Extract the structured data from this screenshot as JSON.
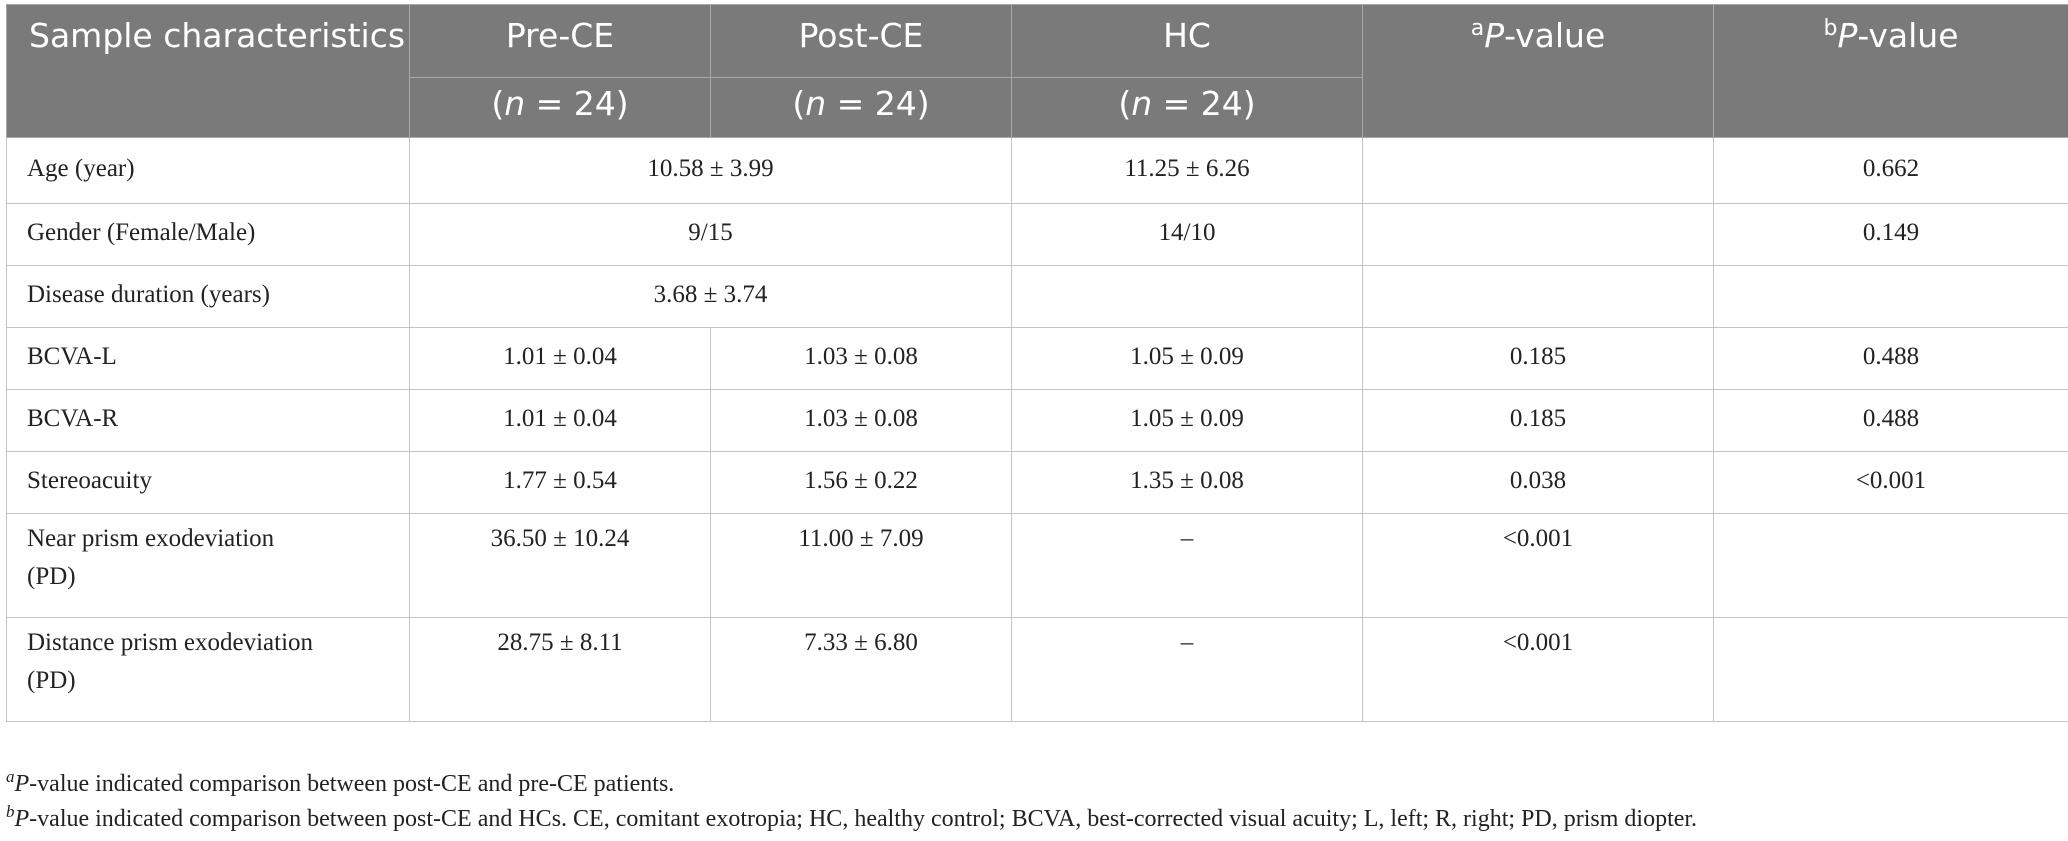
{
  "header": {
    "sample": "Sample characteristics",
    "pre": "Pre-CE",
    "post": "Post-CE",
    "hc": "HC",
    "n_open": "(",
    "n_var": "n",
    "n_val": " = 24)",
    "pa_sup": "a",
    "pb_sup": "b",
    "p_var": "P",
    "p_rest": "-value"
  },
  "rows": {
    "age": {
      "label": "Age (year)",
      "pre_post": "10.58 ± 3.99",
      "hc": "11.25 ± 6.26",
      "pa": "",
      "pb": "0.662"
    },
    "gender": {
      "label": "Gender (Female/Male)",
      "pre_post": "9/15",
      "hc": "14/10",
      "pa": "",
      "pb": "0.149"
    },
    "duration": {
      "label": "Disease duration (years)",
      "pre_post": "3.68 ± 3.74",
      "hc": "",
      "pa": "",
      "pb": ""
    },
    "bcva_l": {
      "label": "BCVA-L",
      "pre": "1.01 ± 0.04",
      "post": "1.03 ± 0.08",
      "hc": "1.05 ± 0.09",
      "pa": "0.185",
      "pb": "0.488"
    },
    "bcva_r": {
      "label": "BCVA-R",
      "pre": "1.01 ± 0.04",
      "post": "1.03 ± 0.08",
      "hc": "1.05 ± 0.09",
      "pa": "0.185",
      "pb": "0.488"
    },
    "stereo": {
      "label": "Stereoacuity",
      "pre": "1.77 ± 0.54",
      "post": "1.56 ± 0.22",
      "hc": "1.35 ± 0.08",
      "pa": "0.038",
      "pb": "<0.001"
    },
    "near": {
      "label_1": "Near prism exodeviation",
      "label_2": "(PD)",
      "pre": "36.50 ± 10.24",
      "post": "11.00 ± 7.09",
      "hc": "–",
      "pa": "<0.001",
      "pb": ""
    },
    "distance": {
      "label_1": "Distance prism exodeviation",
      "label_2": "(PD)",
      "pre": "28.75 ± 8.11",
      "post": "7.33 ± 6.80",
      "hc": "–",
      "pa": "<0.001",
      "pb": ""
    }
  },
  "footnotes": {
    "a_sup": "a",
    "a_var": "P",
    "a_text": "-value indicated comparison between post-CE and pre-CE patients.",
    "b_sup": "b",
    "b_var": "P",
    "b_text": "-value indicated comparison between post-CE and HCs. CE, comitant exotropia; HC, healthy control; BCVA, best-corrected visual acuity; L, left; R, right; PD, prism diopter."
  }
}
